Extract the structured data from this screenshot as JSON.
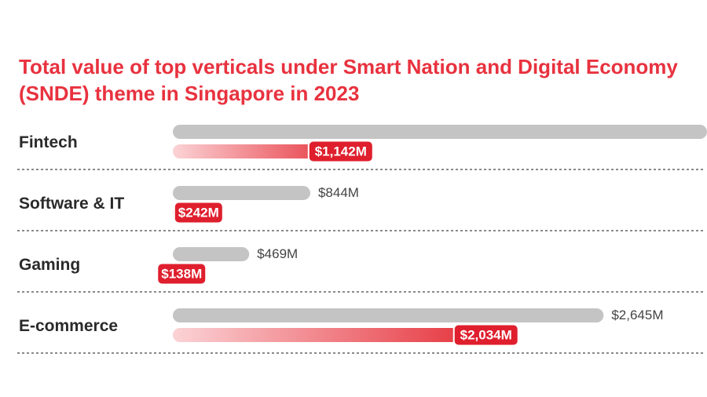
{
  "chart_data": {
    "type": "bar",
    "title": "Total value of top verticals under Smart Nation and Digital Economy (SNDE) theme in Singapore in 2023",
    "categories": [
      "Fintech",
      "Software & IT",
      "Gaming",
      "E-commerce"
    ],
    "series": [
      {
        "values": [
          3280,
          844,
          469,
          2645
        ],
        "labels": [
          "",
          "$844M",
          "$469M",
          "$2,645M"
        ]
      },
      {
        "values": [
          1142,
          242,
          138,
          2034
        ],
        "labels": [
          "$1,142M",
          "$242M",
          "$138M",
          "$2,034M"
        ]
      }
    ],
    "xlim": [
      0,
      3280
    ],
    "colors": {
      "title": "#e8323f",
      "bar_gray": "#c4c4c4",
      "bar_red": "#e4262f",
      "bar_red_light": "#fbd3d6",
      "pill": "#df1f2d",
      "separator": "#8a8a8a"
    }
  }
}
